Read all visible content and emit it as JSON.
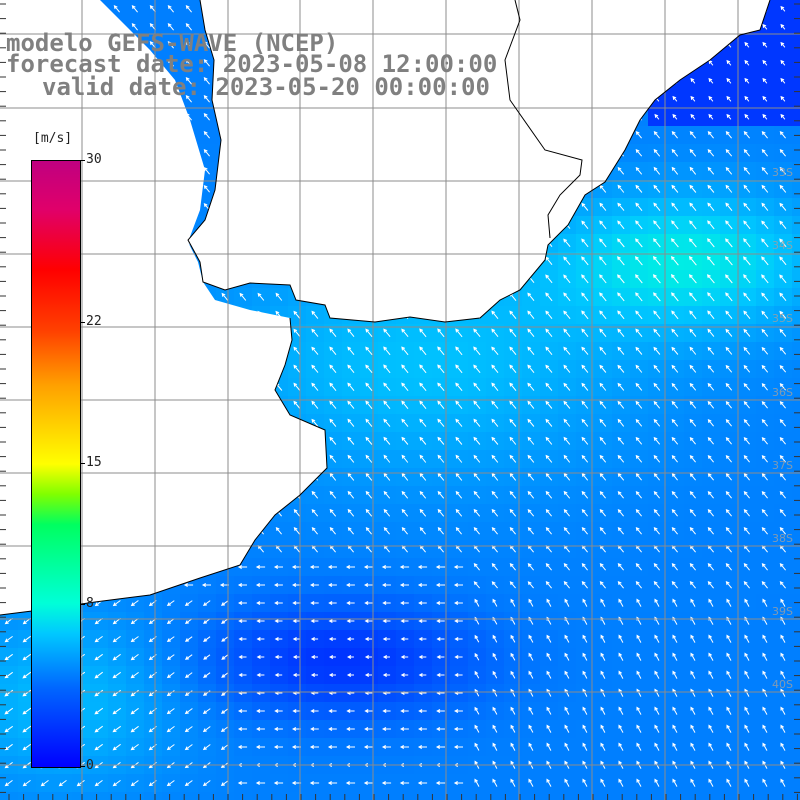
{
  "title": {
    "line1": "modelo GEFS-WAVE (NCEP)",
    "line2": "forecast date: 2023-05-08 12:00:00",
    "line3": "valid date: 2023-05-20 00:00:00"
  },
  "colorbar": {
    "unit": "[m/s]",
    "ticks": [
      {
        "label": "30",
        "value": 30
      },
      {
        "label": "22",
        "value": 22
      },
      {
        "label": "15",
        "value": 15
      },
      {
        "label": "8",
        "value": 8
      },
      {
        "label": "0",
        "value": 0
      }
    ],
    "range": [
      0,
      30
    ]
  },
  "colors": {
    "land": "#ffffff",
    "grid": "#8c8c8c",
    "coast": "#000000",
    "arrow": "#ffffff"
  },
  "map": {
    "variable": "wind speed",
    "lat_labels": [
      "33S",
      "34S",
      "35S",
      "36S",
      "37S",
      "38S",
      "39S",
      "40S"
    ]
  }
}
